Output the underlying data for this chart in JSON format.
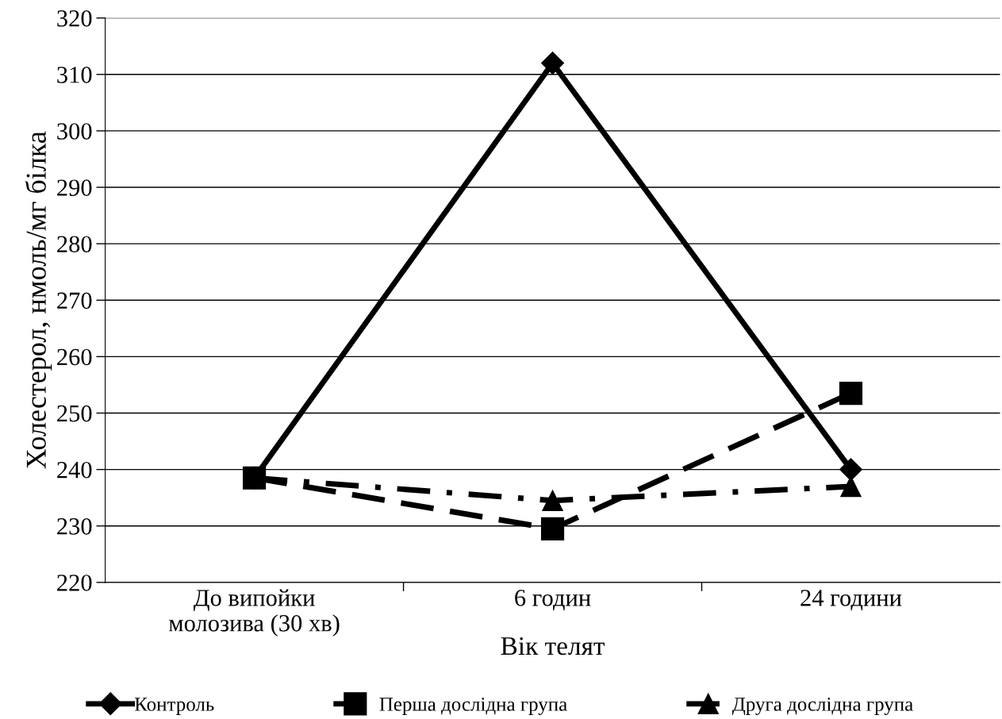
{
  "chart_data": {
    "type": "line",
    "xlabel": "Вік телят",
    "ylabel": "Холестерол, нмоль/мг білка",
    "categories": [
      "До випойки\nмолозива (30 хв)",
      "6 годин",
      "24 години"
    ],
    "series": [
      {
        "name": "Контроль",
        "color": "#000000",
        "values": [
          238.5,
          312,
          240
        ],
        "marker": "diamond",
        "line_style": "solid"
      },
      {
        "name": "Перша дослідна група",
        "color": "#000000",
        "values": [
          238.5,
          229.5,
          253.5
        ],
        "marker": "square",
        "line_style": "dashed"
      },
      {
        "name": "Друга дослідна група",
        "color": "#000000",
        "values": [
          238.5,
          234.5,
          237
        ],
        "marker": "triangle",
        "line_style": "dashdot"
      }
    ],
    "ylim": [
      220,
      320
    ],
    "yticks": [
      220,
      230,
      240,
      250,
      260,
      270,
      280,
      290,
      300,
      310,
      320
    ],
    "grid": "y",
    "legend": "bottom"
  }
}
